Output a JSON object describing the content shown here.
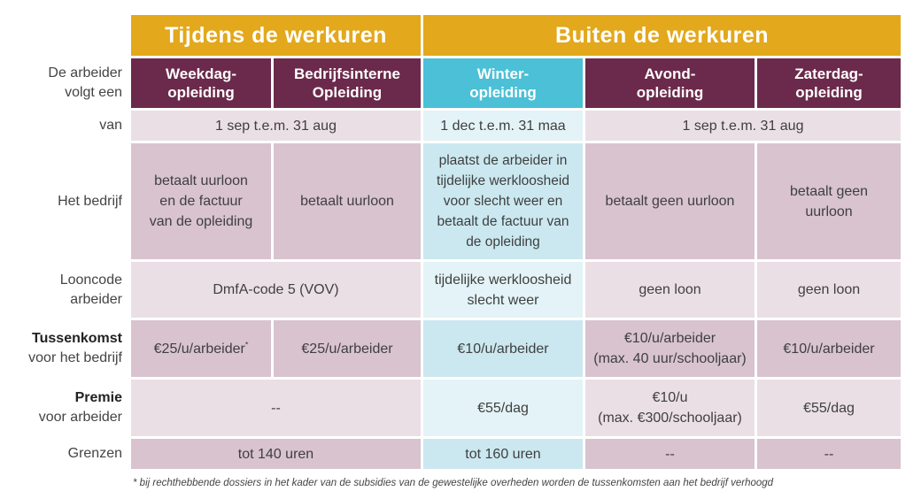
{
  "header": {
    "group_left": "Tijdens de werkuren",
    "group_right": "Buiten de werkuren"
  },
  "row_label_follows": [
    "De arbeider",
    "volgt een"
  ],
  "columns": [
    [
      "Weekdag-",
      "opleiding"
    ],
    [
      "Bedrijfsinterne",
      "Opleiding"
    ],
    [
      "Winter-",
      "opleiding"
    ],
    [
      "Avond-",
      "opleiding"
    ],
    [
      "Zaterdag-",
      "opleiding"
    ]
  ],
  "rows": {
    "van": {
      "label": "van",
      "left": "1 sep t.e.m. 31 aug",
      "winter": "1 dec t.e.m. 31 maa",
      "right": "1 sep t.e.m. 31 aug"
    },
    "bedrijf": {
      "label": "Het bedrijf",
      "weekdag": [
        "betaalt uurloon",
        "en de factuur",
        "van de opleiding"
      ],
      "intern": "betaalt uurloon",
      "winter": [
        "plaatst de arbeider in",
        "tijdelijke werkloosheid",
        "voor slecht weer en",
        "betaalt de factuur van",
        "de opleiding"
      ],
      "avond": "betaalt geen uurloon",
      "zaterdag": [
        "betaalt geen",
        "uurloon"
      ]
    },
    "looncode": {
      "label": [
        "Looncode",
        "arbeider"
      ],
      "left": "DmfA-code 5 (VOV)",
      "winter": [
        "tijdelijke werkloosheid",
        "slecht weer"
      ],
      "avond": "geen loon",
      "zaterdag": "geen loon"
    },
    "tussenkomst": {
      "label_bold": "Tussenkomst",
      "label_rest": "voor het bedrijf",
      "weekdag": "€25/u/arbeider",
      "weekdag_mark": "*",
      "intern": "€25/u/arbeider",
      "winter": "€10/u/arbeider",
      "avond": [
        "€10/u/arbeider",
        "(max. 40 uur/schooljaar)"
      ],
      "zaterdag": "€10/u/arbeider"
    },
    "premie": {
      "label_bold": "Premie",
      "label_rest": "voor arbeider",
      "left": "--",
      "winter": "€55/dag",
      "avond": [
        "€10/u",
        "(max. €300/schooljaar)"
      ],
      "zaterdag": "€55/dag"
    },
    "grenzen": {
      "label": "Grenzen",
      "left": "tot 140 uren",
      "winter": "tot 160 uren",
      "avond": "--",
      "zaterdag": "--"
    }
  },
  "footnote": "* bij rechthebbende dossiers in het kader van de subsidies van de gewestelijke overheden worden de tussenkomsten aan het bedrijf verhoogd",
  "colors": {
    "gold": "#e3a81b",
    "purple": "#6b2a4b",
    "cyan_header": "#4bc0d6",
    "mauve": "#d8c3cf",
    "mauve_light": "#eadfe5",
    "cyan": "#cbe8f0",
    "cyan_light": "#e3f3f7"
  }
}
